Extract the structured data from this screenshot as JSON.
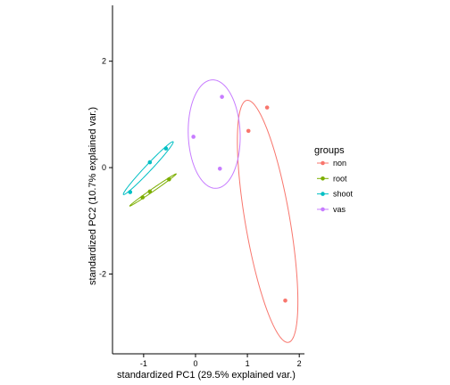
{
  "chart_data": {
    "type": "scatter",
    "xlabel": "standardized PC1 (29.5% explained var.)",
    "ylabel": "standardized PC2 (10.7% explained var.)",
    "xlim": [
      -1.6,
      2.1
    ],
    "ylim": [
      -3.5,
      3.05
    ],
    "x_ticks": [
      -1,
      0,
      1,
      2
    ],
    "y_ticks": [
      -2,
      0,
      2
    ],
    "x_tick_labels": [
      "-1",
      "0",
      "1",
      "2"
    ],
    "y_tick_labels": [
      "-2",
      "0",
      "2"
    ],
    "grid": false,
    "legend": {
      "title": "groups",
      "position": "right",
      "entries": [
        "non",
        "root",
        "shoot",
        "vas"
      ]
    },
    "series": [
      {
        "name": "non",
        "color": "#f8766d",
        "points": [
          [
            1.02,
            0.69
          ],
          [
            1.38,
            1.13
          ],
          [
            1.73,
            -2.5
          ]
        ],
        "ellipse": {
          "center": [
            1.39,
            -1.01
          ],
          "semi_major": 2.31,
          "semi_minor": 0.43,
          "angle_deg": -80
        }
      },
      {
        "name": "root",
        "color": "#7cae00",
        "points": [
          [
            -0.88,
            -0.45
          ],
          [
            -1.02,
            -0.56
          ],
          [
            -0.51,
            -0.22
          ]
        ],
        "ellipse": {
          "center": [
            -0.82,
            -0.42
          ],
          "semi_major": 0.54,
          "semi_minor": 0.025,
          "angle_deg": 34
        }
      },
      {
        "name": "shoot",
        "color": "#00bfc4",
        "points": [
          [
            -1.26,
            -0.46
          ],
          [
            -0.88,
            0.1
          ],
          [
            -0.57,
            0.36
          ]
        ],
        "ellipse": {
          "center": [
            -0.91,
            -0.01
          ],
          "semi_major": 0.69,
          "semi_minor": 0.06,
          "angle_deg": 46
        }
      },
      {
        "name": "vas",
        "color": "#c77cff",
        "points": [
          [
            -0.04,
            0.58
          ],
          [
            0.47,
            -0.02
          ],
          [
            0.51,
            1.33
          ]
        ],
        "ellipse": {
          "center": [
            0.36,
            0.63
          ],
          "semi_major": 1.02,
          "semi_minor": 0.5,
          "angle_deg": -88
        }
      }
    ]
  }
}
